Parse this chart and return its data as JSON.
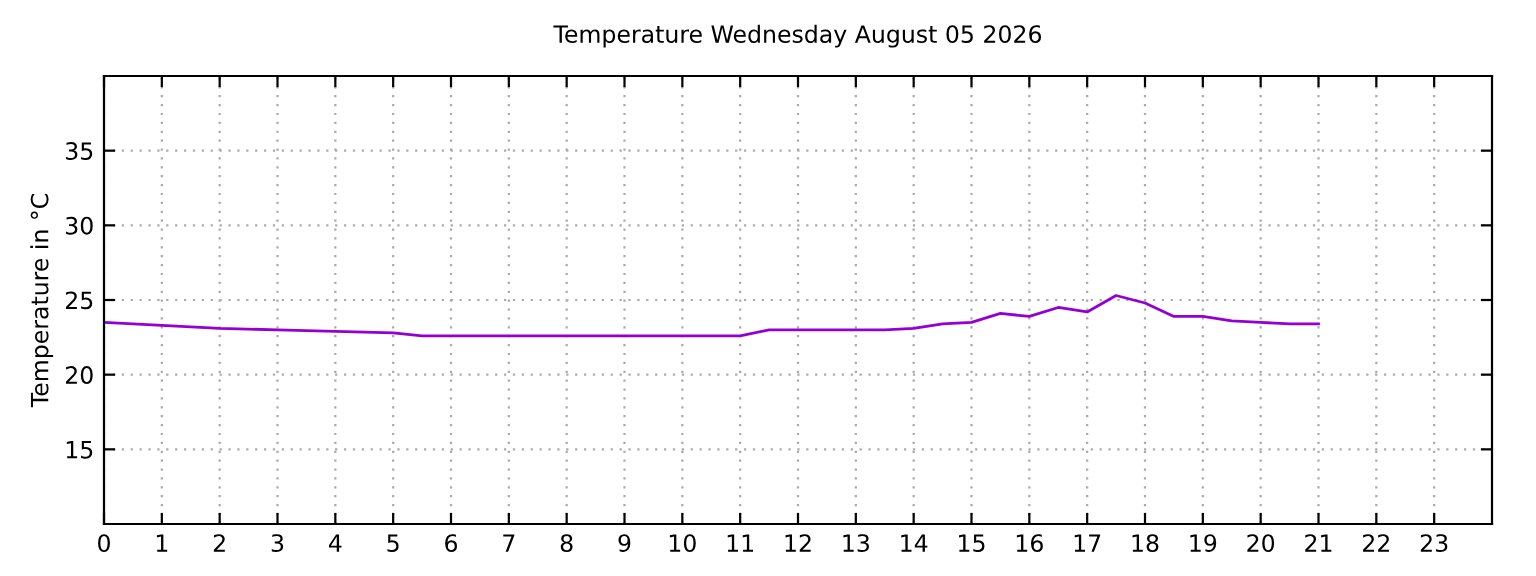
{
  "chart_data": {
    "type": "line",
    "title": "Temperature Wednesday August 05 2026",
    "ylabel": "Temperature in °C",
    "x": [
      0,
      1,
      2,
      3,
      4,
      5,
      5.5,
      6,
      7,
      8,
      9,
      10,
      11,
      11.5,
      12,
      13,
      13.5,
      14,
      14.5,
      15,
      15.5,
      16,
      16.5,
      17,
      17.5,
      18,
      18.5,
      19,
      19.5,
      20,
      20.5,
      21
    ],
    "series": [
      {
        "color": "#9400d3",
        "values": [
          23.5,
          23.3,
          23.1,
          23.0,
          22.9,
          22.8,
          22.6,
          22.6,
          22.6,
          22.6,
          22.6,
          22.6,
          22.6,
          23.0,
          23.0,
          23.0,
          23.0,
          23.1,
          23.4,
          23.5,
          24.1,
          23.9,
          24.5,
          24.2,
          25.3,
          24.8,
          23.9,
          23.9,
          23.6,
          23.5,
          23.4,
          23.4
        ]
      }
    ],
    "xlim": [
      0,
      24
    ],
    "xticks": [
      0,
      1,
      2,
      3,
      4,
      5,
      6,
      7,
      8,
      9,
      10,
      11,
      12,
      13,
      14,
      15,
      16,
      17,
      18,
      19,
      20,
      21,
      22,
      23
    ],
    "ylim": [
      10,
      40
    ],
    "yticks": [
      15,
      20,
      25,
      30,
      35
    ],
    "grid": true,
    "line_style": "solid",
    "marker": "none",
    "legend": false
  }
}
